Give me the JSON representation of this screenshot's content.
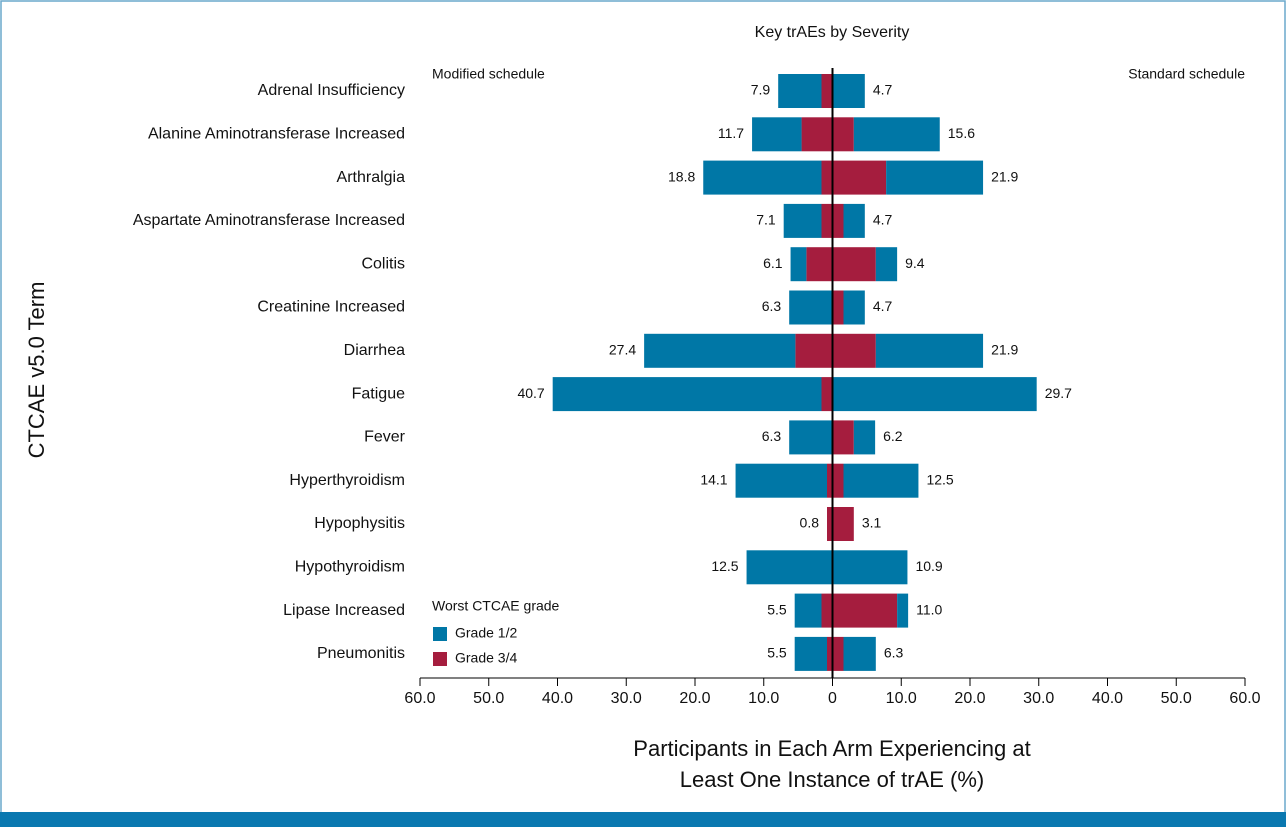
{
  "chart_data": {
    "type": "butterfly-bar",
    "title": "Key trAEs by Severity",
    "y_label": "CTCAE v5.0 Term",
    "x_label_lines": [
      "Participants in Each Arm Experiencing at",
      "Least One Instance of trAE (%)"
    ],
    "arm_labels": {
      "modified": "Modified schedule",
      "standard": "Standard schedule"
    },
    "legend_title": "Worst CTCAE grade",
    "categories": [
      "Adrenal Insufficiency",
      "Alanine Aminotransferase Increased",
      "Arthralgia",
      "Aspartate Aminotransferase Increased",
      "Colitis",
      "Creatinine Increased",
      "Diarrhea",
      "Fatigue",
      "Fever",
      "Hyperthyroidism",
      "Hypophysitis",
      "Hypothyroidism",
      "Lipase Increased",
      "Pneumonitis"
    ],
    "series": [
      {
        "name": "Grade 1/2",
        "color": "#0077a6",
        "modified": [
          6.3,
          7.2,
          17.2,
          5.5,
          2.3,
          6.3,
          22.0,
          39.1,
          6.3,
          13.3,
          0,
          12.5,
          3.9,
          4.7
        ],
        "standard": [
          4.7,
          12.5,
          14.1,
          3.1,
          3.1,
          3.1,
          15.6,
          29.7,
          3.1,
          10.9,
          0,
          10.9,
          1.6,
          4.7
        ]
      },
      {
        "name": "Grade 3/4",
        "color": "#a51d3e",
        "modified": [
          1.6,
          4.5,
          1.6,
          1.6,
          3.8,
          0,
          5.4,
          1.6,
          0,
          0.8,
          0.8,
          0,
          1.6,
          0.8
        ],
        "standard": [
          0,
          3.1,
          7.8,
          1.6,
          6.3,
          1.6,
          6.3,
          0,
          3.1,
          1.6,
          3.1,
          0,
          9.4,
          1.6
        ]
      }
    ],
    "totals": {
      "modified": {
        "values": [
          7.9,
          11.7,
          18.8,
          7.1,
          6.1,
          6.3,
          27.4,
          40.7,
          6.3,
          14.1,
          0.8,
          12.5,
          5.5,
          5.5
        ],
        "value_labels": [
          "7.9",
          "11.7",
          "18.8",
          "7.1",
          "6.1",
          "6.3",
          "27.4",
          "40.7",
          "6.3",
          "14.1",
          "0.8",
          "12.5",
          "5.5",
          "5.5"
        ]
      },
      "standard": {
        "values": [
          4.7,
          15.6,
          21.9,
          4.7,
          9.4,
          4.7,
          21.9,
          29.7,
          6.2,
          12.5,
          3.1,
          10.9,
          11.0,
          6.3
        ],
        "value_labels": [
          "4.7",
          "15.6",
          "21.9",
          "4.7",
          "9.4",
          "4.7",
          "21.9",
          "29.7",
          "6.2",
          "12.5",
          "3.1",
          "10.9",
          "11.0",
          "6.3"
        ]
      }
    },
    "xlim": [
      -60,
      60
    ],
    "xticks": [
      {
        "value": -60,
        "label": "60.0"
      },
      {
        "value": -50,
        "label": "50.0"
      },
      {
        "value": -40,
        "label": "40.0"
      },
      {
        "value": -30,
        "label": "30.0"
      },
      {
        "value": -20,
        "label": "20.0"
      },
      {
        "value": -10,
        "label": "10.0"
      },
      0,
      {
        "value": 10,
        "label": "10.0"
      },
      {
        "value": 20,
        "label": "20.0"
      },
      {
        "value": 30,
        "label": "30.0"
      },
      {
        "value": 40,
        "label": "40.0"
      },
      {
        "value": 50,
        "label": "50.0"
      },
      {
        "value": 60,
        "label": "60.0"
      }
    ]
  }
}
